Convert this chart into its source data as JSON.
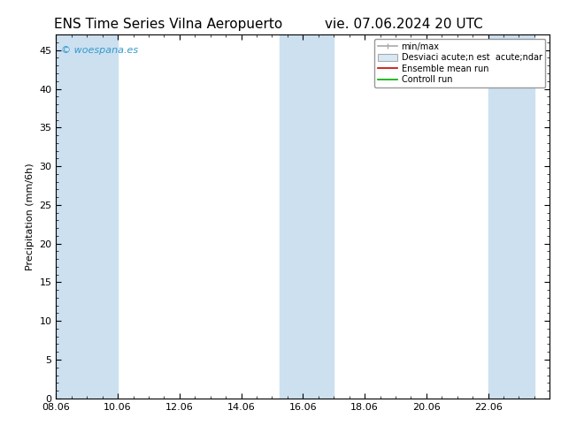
{
  "title_left": "ENS Time Series Vilna Aeropuerto",
  "title_right": "vie. 07.06.2024 20 UTC",
  "ylabel": "Precipitation (mm/6h)",
  "ylim": [
    0,
    47
  ],
  "yticks": [
    0,
    5,
    10,
    15,
    20,
    25,
    30,
    35,
    40,
    45
  ],
  "xtick_labels": [
    "08.06",
    "10.06",
    "12.06",
    "14.06",
    "16.06",
    "18.06",
    "20.06",
    "22.06"
  ],
  "xtick_positions": [
    0,
    2,
    4,
    6,
    8,
    10,
    12,
    14
  ],
  "xlim": [
    0,
    15.5
  ],
  "shaded_regions": [
    {
      "start": 0.0,
      "end": 1.0,
      "color": "#cce0f0"
    },
    {
      "start": 1.0,
      "end": 2.0,
      "color": "#cce0f0"
    },
    {
      "start": 7.25,
      "end": 9.0,
      "color": "#cce0f0"
    },
    {
      "start": 14.0,
      "end": 15.5,
      "color": "#cce0f0"
    }
  ],
  "watermark": "© woespana.es",
  "watermark_color": "#3399cc",
  "background_color": "#ffffff",
  "plot_bg_color": "#ffffff",
  "legend_labels": [
    "min/max",
    "Desviaci acute;n est  acute;ndar",
    "Ensemble mean run",
    "Controll run"
  ],
  "legend_line_colors": [
    "#aaaaaa",
    "#cccccc",
    "#cc0000",
    "#00aa00"
  ],
  "title_fontsize": 11,
  "ylabel_fontsize": 8,
  "tick_fontsize": 8
}
